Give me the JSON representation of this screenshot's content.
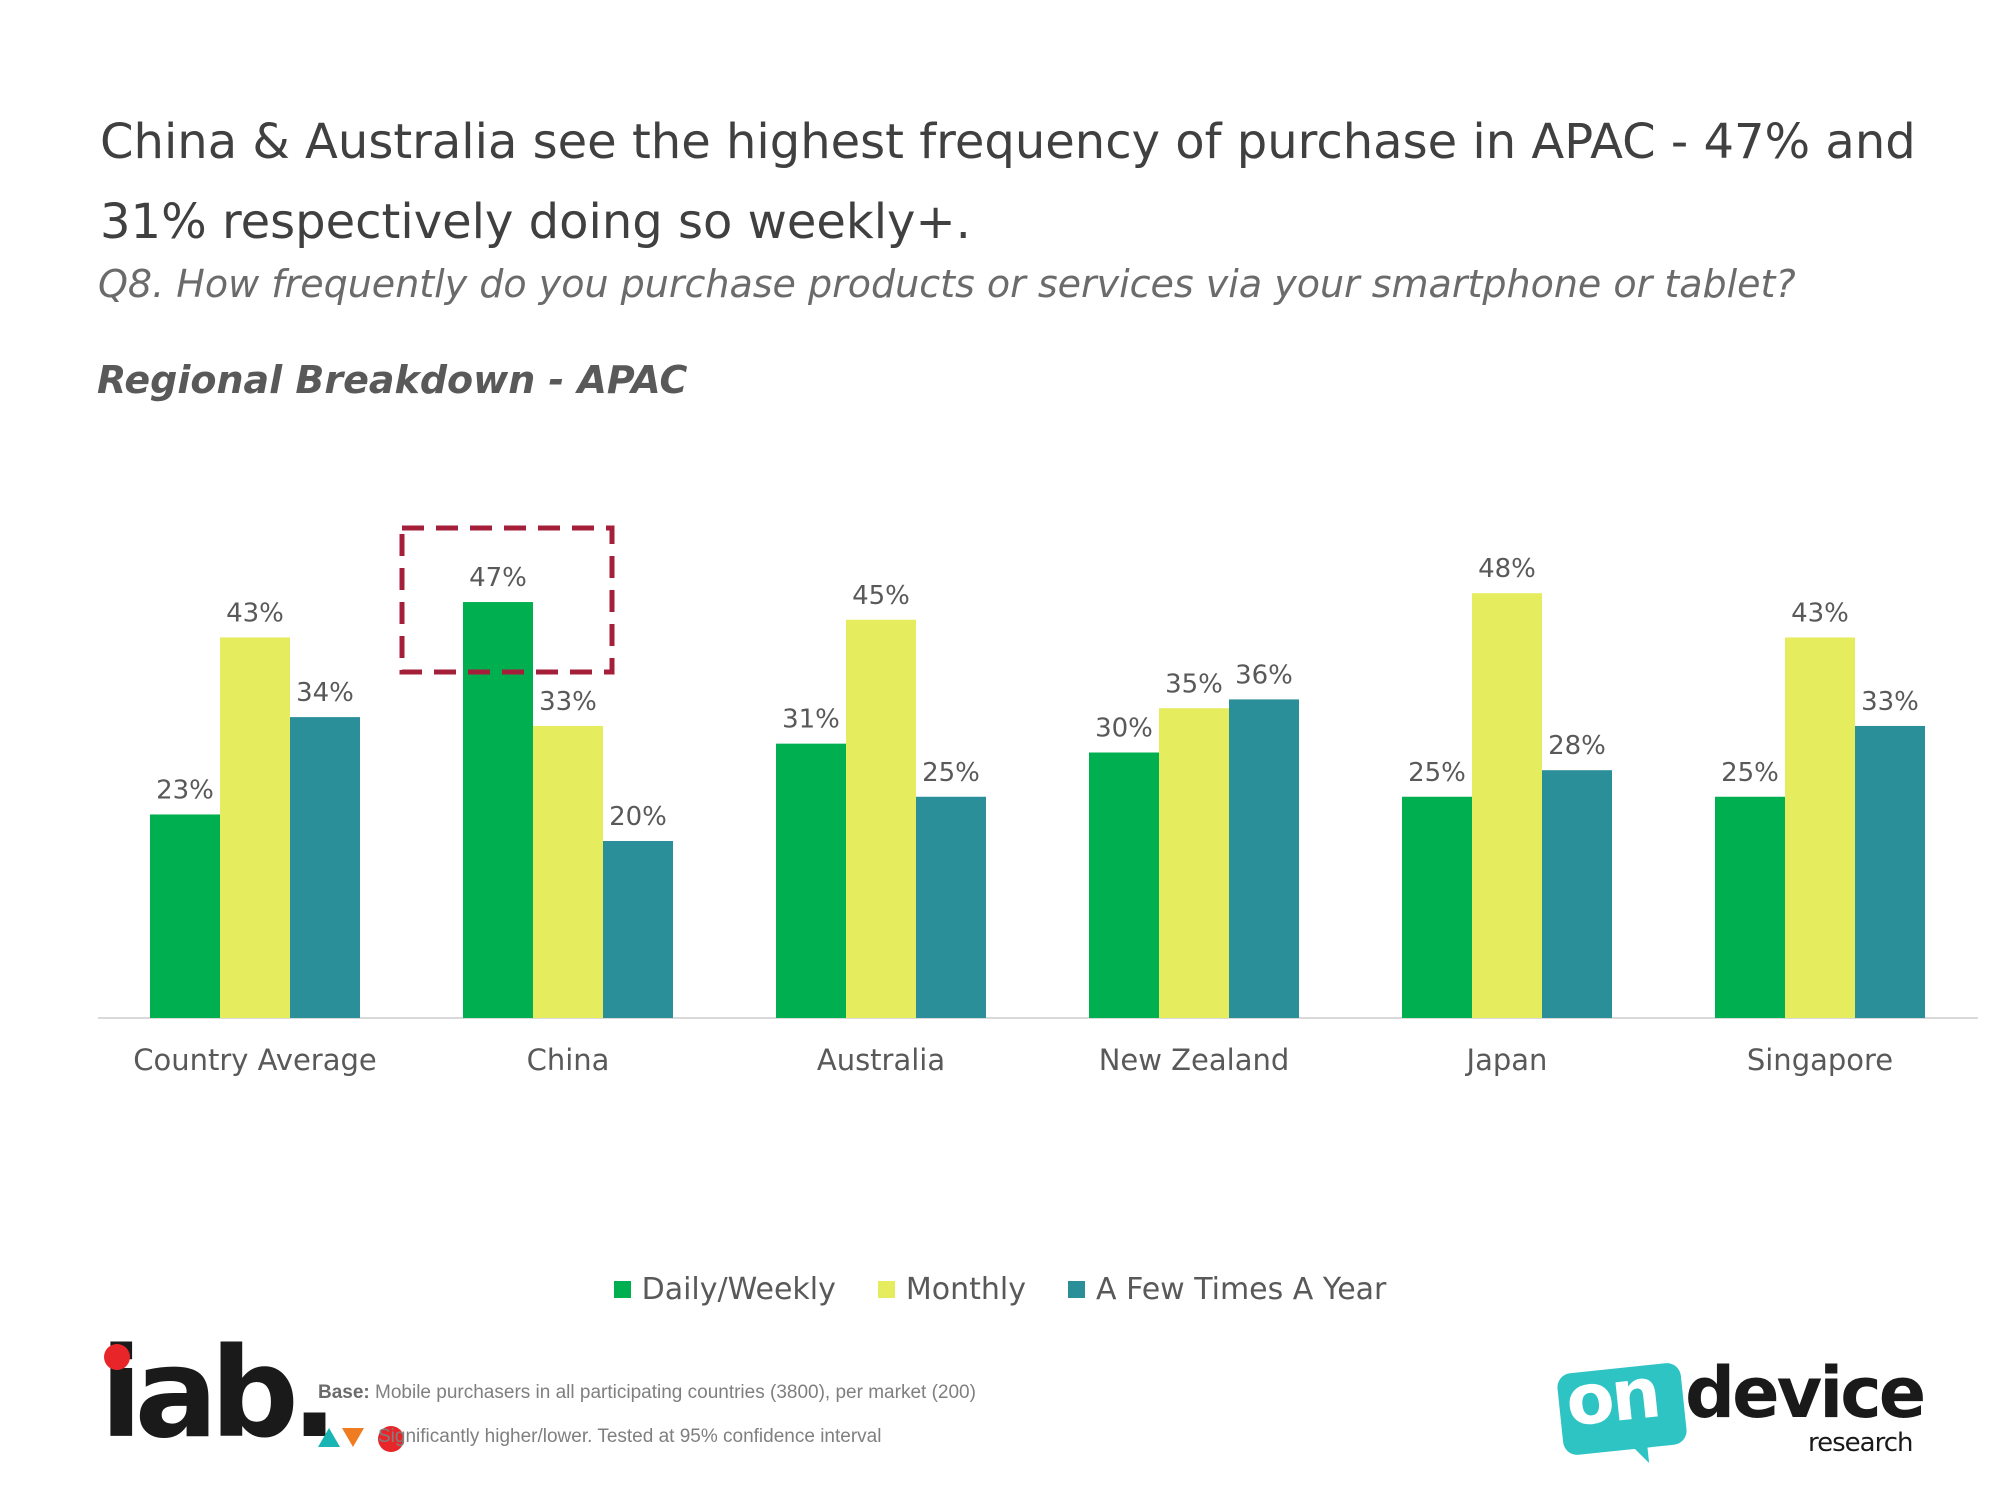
{
  "header": {
    "title": "China & Australia see the highest frequency of purchase in APAC -  47% and 31% respectively doing so weekly+.",
    "question": "Q8. How frequently do you purchase products or services via your smartphone or tablet?",
    "section": "Regional Breakdown - APAC"
  },
  "chart_data": {
    "type": "bar",
    "title": "Regional Breakdown - APAC",
    "categories": [
      "Country Average",
      "China",
      "Australia",
      "New Zealand",
      "Japan",
      "Singapore"
    ],
    "series": [
      {
        "name": "Daily/Weekly",
        "color": "#00b050",
        "values": [
          23,
          47,
          31,
          30,
          25,
          25
        ]
      },
      {
        "name": "Monthly",
        "color": "#e5ec5d",
        "values": [
          43,
          33,
          45,
          35,
          48,
          43
        ]
      },
      {
        "name": "A Few Times A Year",
        "color": "#2a8f99",
        "values": [
          34,
          20,
          25,
          36,
          28,
          33
        ]
      }
    ],
    "value_suffix": "%",
    "ylim": [
      0,
      50
    ],
    "grid": false,
    "highlight": {
      "category": "China",
      "series": "Daily/Weekly",
      "color": "#a51f3a"
    },
    "legend_position": "bottom"
  },
  "legend": [
    {
      "label": "Daily/Weekly",
      "color": "#00b050"
    },
    {
      "label": "Monthly",
      "color": "#e5ec5d"
    },
    {
      "label": "A Few Times A Year",
      "color": "#2a8f99"
    }
  ],
  "footer": {
    "iab_logo": "iab.",
    "base_label": "Base:",
    "base_text": " Mobile purchasers in all participating countries (3800), per market (200)",
    "significance_text": "Significantly higher/lower. Tested at 95% confidence interval",
    "ondevice_on": "on",
    "ondevice_device": "device",
    "ondevice_research": "research"
  }
}
